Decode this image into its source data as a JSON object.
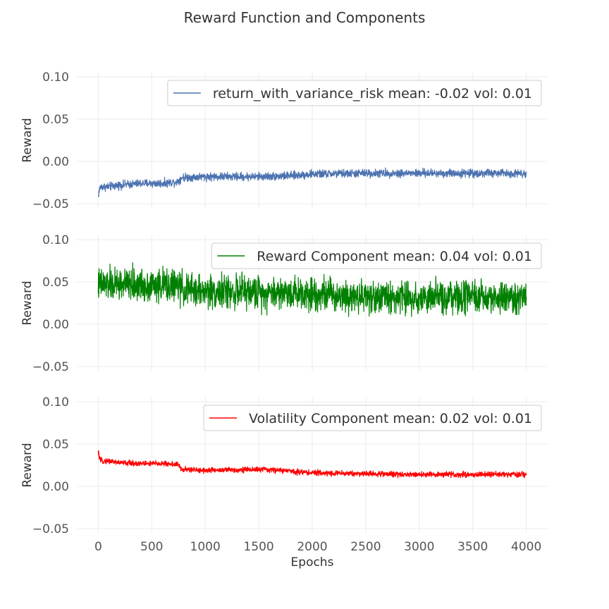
{
  "chart_data": {
    "type": "line",
    "title": "Reward Function and Components",
    "xlabel": "Epochs",
    "xlim": [
      -200,
      4200
    ],
    "xticks": [
      0,
      500,
      1000,
      1500,
      2000,
      2500,
      3000,
      3500,
      4000
    ],
    "shared_x": true,
    "grid": true,
    "subplots": [
      {
        "ylabel": "Reward",
        "ylim": [
          -0.055,
          0.105
        ],
        "yticks": [
          0.1,
          0.05,
          0.0,
          -0.05
        ],
        "ytick_labels": [
          "0.10",
          "0.05",
          "0.00",
          "−0.05"
        ],
        "legend_placement": "top-right",
        "series": [
          {
            "name": "return_with_variance_risk mean: -0.02 vol: 0.01",
            "color": "#4c72b0",
            "noise": 0.003,
            "points": [
              [
                0,
                -0.04
              ],
              [
                20,
                -0.03
              ],
              [
                60,
                -0.03
              ],
              [
                100,
                -0.03
              ],
              [
                200,
                -0.028
              ],
              [
                400,
                -0.026
              ],
              [
                600,
                -0.026
              ],
              [
                740,
                -0.024
              ],
              [
                780,
                -0.019
              ],
              [
                1000,
                -0.018
              ],
              [
                1500,
                -0.018
              ],
              [
                1800,
                -0.017
              ],
              [
                2000,
                -0.015
              ],
              [
                2500,
                -0.014
              ],
              [
                3000,
                -0.014
              ],
              [
                3500,
                -0.014
              ],
              [
                4000,
                -0.014
              ]
            ]
          }
        ]
      },
      {
        "ylabel": "Reward",
        "ylim": [
          -0.055,
          0.105
        ],
        "yticks": [
          0.1,
          0.05,
          0.0,
          -0.05
        ],
        "ytick_labels": [
          "0.10",
          "0.05",
          "0.00",
          "−0.05"
        ],
        "legend_placement": "top-right",
        "series": [
          {
            "name": "Reward Component mean: 0.04 vol: 0.01",
            "color": "#008000",
            "noise": 0.012,
            "points": [
              [
                0,
                0.047
              ],
              [
                200,
                0.047
              ],
              [
                500,
                0.046
              ],
              [
                740,
                0.046
              ],
              [
                800,
                0.041
              ],
              [
                1000,
                0.039
              ],
              [
                1500,
                0.038
              ],
              [
                2000,
                0.037
              ],
              [
                2500,
                0.033
              ],
              [
                3000,
                0.031
              ],
              [
                3500,
                0.031
              ],
              [
                4000,
                0.031
              ]
            ]
          }
        ]
      },
      {
        "ylabel": "Reward",
        "ylim": [
          -0.055,
          0.105
        ],
        "yticks": [
          0.1,
          0.05,
          0.0,
          -0.05
        ],
        "ytick_labels": [
          "0.10",
          "0.05",
          "0.00",
          "−0.05"
        ],
        "legend_placement": "top-right",
        "series": [
          {
            "name": "Volatility Component mean: 0.02 vol: 0.01",
            "color": "#ff0000",
            "noise": 0.002,
            "points": [
              [
                0,
                0.04
              ],
              [
                20,
                0.03
              ],
              [
                60,
                0.03
              ],
              [
                100,
                0.03
              ],
              [
                200,
                0.028
              ],
              [
                400,
                0.027
              ],
              [
                600,
                0.027
              ],
              [
                740,
                0.026
              ],
              [
                780,
                0.02
              ],
              [
                1000,
                0.019
              ],
              [
                1500,
                0.02
              ],
              [
                1700,
                0.019
              ],
              [
                2000,
                0.016
              ],
              [
                2500,
                0.015
              ],
              [
                3000,
                0.014
              ],
              [
                3500,
                0.014
              ],
              [
                4000,
                0.014
              ]
            ]
          }
        ]
      }
    ]
  }
}
